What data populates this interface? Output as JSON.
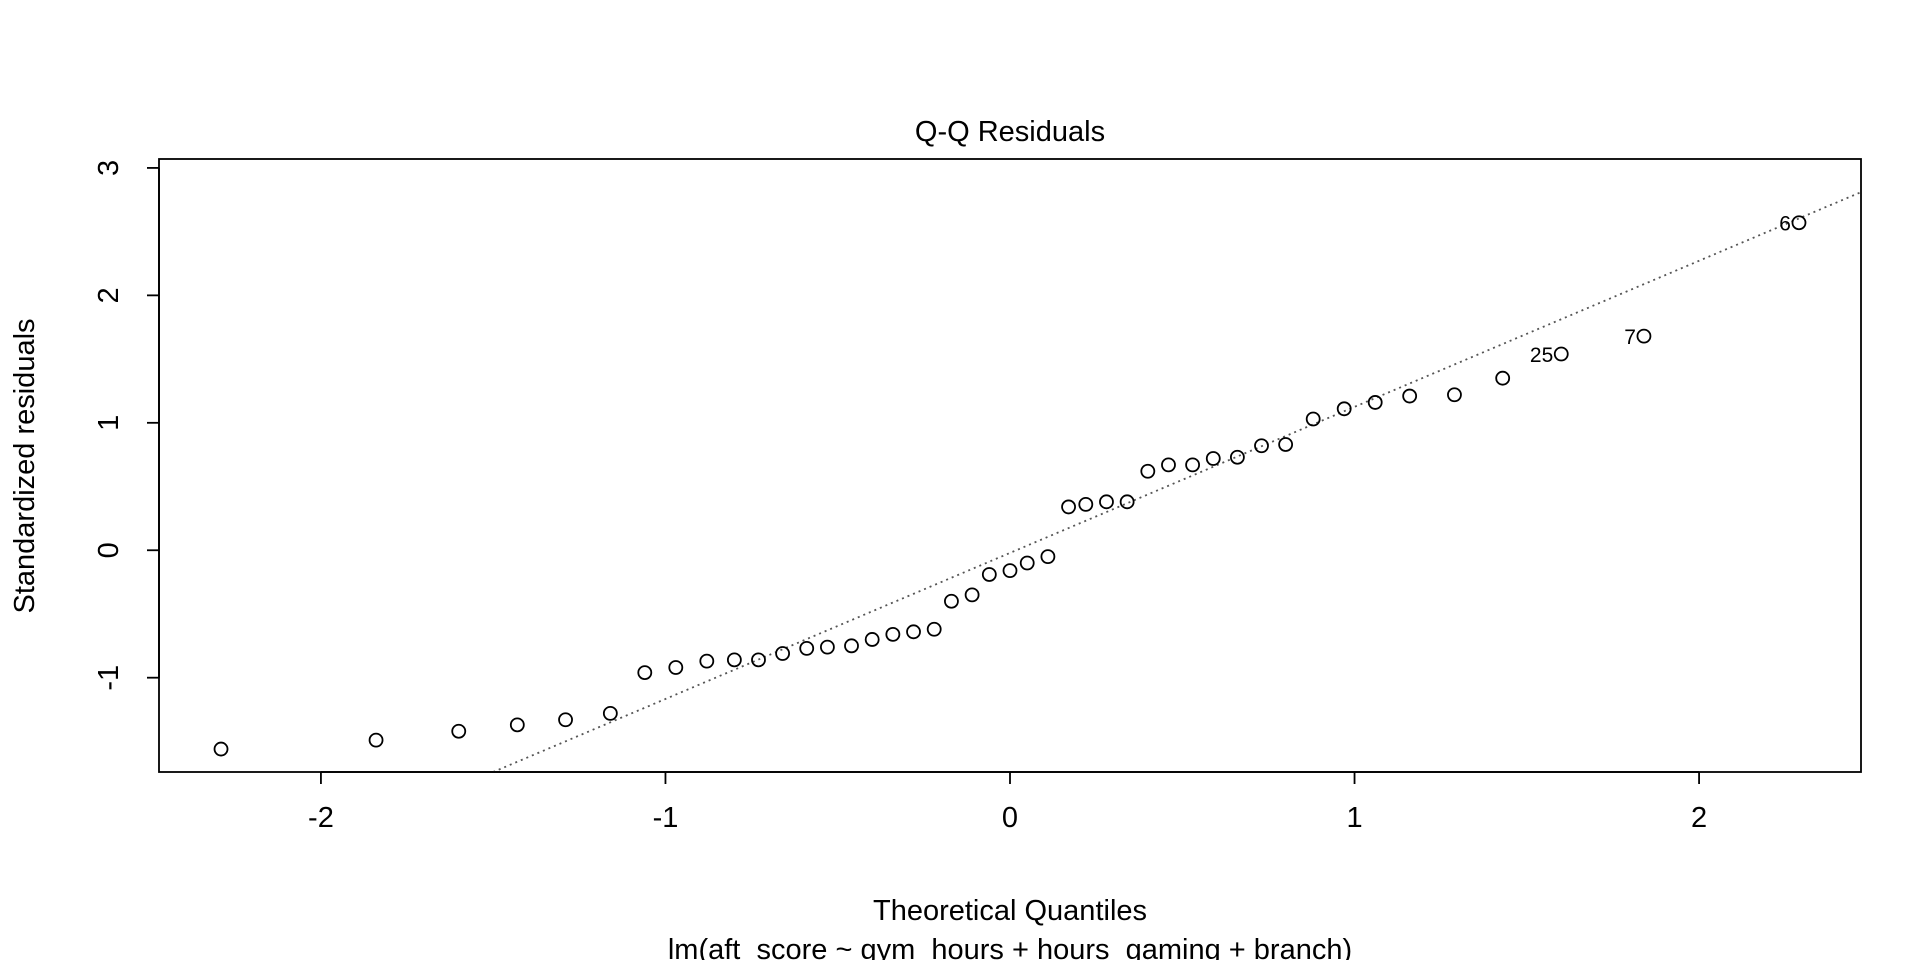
{
  "chart_data": {
    "type": "scatter",
    "title": "Q-Q Residuals",
    "xlabel": "Theoretical Quantiles",
    "ylabel": "Standardized residuals",
    "subtitle": "lm(aft_score ~ gym_hours + hours_gaming + branch)",
    "xlim": [
      -2.47,
      2.47
    ],
    "ylim": [
      -1.74,
      3.07
    ],
    "x_ticks": [
      -2,
      -1,
      0,
      1,
      2
    ],
    "y_ticks": [
      -1,
      0,
      1,
      2,
      3
    ],
    "grid": false,
    "legend": "none",
    "colors": {
      "points": "#000000",
      "reference_line": "#555555",
      "frame": "#000000"
    },
    "reference_line": {
      "style": "dotted",
      "x1": -1.5,
      "y1": -1.74,
      "x2": 2.47,
      "y2": 2.81
    },
    "points": [
      {
        "x": -2.29,
        "y": -1.56
      },
      {
        "x": -1.84,
        "y": -1.49
      },
      {
        "x": -1.6,
        "y": -1.42
      },
      {
        "x": -1.43,
        "y": -1.37
      },
      {
        "x": -1.29,
        "y": -1.33
      },
      {
        "x": -1.16,
        "y": -1.28
      },
      {
        "x": -1.06,
        "y": -0.96
      },
      {
        "x": -0.97,
        "y": -0.92
      },
      {
        "x": -0.88,
        "y": -0.87
      },
      {
        "x": -0.8,
        "y": -0.86
      },
      {
        "x": -0.73,
        "y": -0.86
      },
      {
        "x": -0.66,
        "y": -0.81
      },
      {
        "x": -0.59,
        "y": -0.77
      },
      {
        "x": -0.53,
        "y": -0.76
      },
      {
        "x": -0.46,
        "y": -0.75
      },
      {
        "x": -0.4,
        "y": -0.7
      },
      {
        "x": -0.34,
        "y": -0.66
      },
      {
        "x": -0.28,
        "y": -0.64
      },
      {
        "x": -0.22,
        "y": -0.62
      },
      {
        "x": -0.17,
        "y": -0.4
      },
      {
        "x": -0.11,
        "y": -0.35
      },
      {
        "x": -0.06,
        "y": -0.19
      },
      {
        "x": 0.0,
        "y": -0.16
      },
      {
        "x": 0.05,
        "y": -0.1
      },
      {
        "x": 0.11,
        "y": -0.05
      },
      {
        "x": 0.17,
        "y": 0.34
      },
      {
        "x": 0.22,
        "y": 0.36
      },
      {
        "x": 0.28,
        "y": 0.38
      },
      {
        "x": 0.34,
        "y": 0.38
      },
      {
        "x": 0.4,
        "y": 0.62
      },
      {
        "x": 0.46,
        "y": 0.67
      },
      {
        "x": 0.53,
        "y": 0.67
      },
      {
        "x": 0.59,
        "y": 0.72
      },
      {
        "x": 0.66,
        "y": 0.73
      },
      {
        "x": 0.73,
        "y": 0.82
      },
      {
        "x": 0.8,
        "y": 0.83
      },
      {
        "x": 0.88,
        "y": 1.03
      },
      {
        "x": 0.97,
        "y": 1.11
      },
      {
        "x": 1.06,
        "y": 1.16
      },
      {
        "x": 1.16,
        "y": 1.21
      },
      {
        "x": 1.29,
        "y": 1.22
      },
      {
        "x": 1.43,
        "y": 1.35
      },
      {
        "x": 1.6,
        "y": 1.54,
        "label": "25"
      },
      {
        "x": 1.84,
        "y": 1.68,
        "label": "7"
      },
      {
        "x": 2.29,
        "y": 2.57,
        "label": "6"
      }
    ]
  }
}
